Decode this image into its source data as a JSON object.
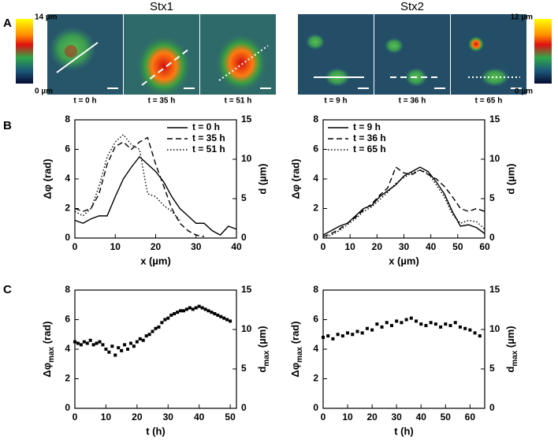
{
  "figure": {
    "panel_labels": [
      "A",
      "B",
      "C"
    ],
    "columns": [
      "Stx1",
      "Stx2"
    ],
    "colorbars": [
      {
        "top": "14 µm",
        "bottom": "0 µm"
      },
      {
        "top": "12 µm",
        "bottom": "0 µm"
      }
    ],
    "frames": [
      "t = 0 h",
      "t = 35 h",
      "t = 51 h",
      "t = 9 h",
      "t = 36 h",
      "t = 65 h"
    ]
  },
  "chart_data": [
    {
      "type": "line",
      "xlabel": "x (µm)",
      "ylabel": "Δφ (rad)",
      "y2label": "d (µm)",
      "xlim": [
        0,
        40
      ],
      "xticks": [
        0,
        10,
        20,
        30,
        40
      ],
      "ylim": [
        0,
        8
      ],
      "yticks": [
        0,
        2,
        4,
        6,
        8
      ],
      "y2lim": [
        0,
        15
      ],
      "y2ticks": [
        0,
        5,
        10,
        15
      ],
      "legend": "upper right",
      "x": [
        0,
        2,
        4,
        6,
        8,
        10,
        12,
        14,
        16,
        18,
        20,
        22,
        24,
        26,
        28,
        30,
        32,
        34,
        36,
        38,
        40
      ],
      "series": [
        {
          "name": "t = 0 h",
          "color": "#000000",
          "dash": "solid",
          "values": [
            1.2,
            1.0,
            1.3,
            1.5,
            1.5,
            2.8,
            4.0,
            4.8,
            5.5,
            5.0,
            4.5,
            3.8,
            2.8,
            2.0,
            1.5,
            1.0,
            1.0,
            0.5,
            0.2,
            0.8,
            0.6
          ]
        },
        {
          "name": "t = 35 h",
          "color": "#000000",
          "dash": "dashed",
          "values": [
            2.0,
            1.8,
            2.0,
            3.0,
            5.0,
            6.2,
            6.5,
            6.0,
            6.5,
            6.8,
            5.0,
            3.5,
            2.0,
            1.0,
            0.5,
            0.2,
            0.1,
            null,
            null,
            null,
            null
          ]
        },
        {
          "name": "t = 51 h",
          "color": "#000000",
          "dash": "dotted",
          "values": [
            1.8,
            1.5,
            2.0,
            3.5,
            5.5,
            6.5,
            7.0,
            6.3,
            6.0,
            3.0,
            2.8,
            2.2,
            1.8,
            1.2,
            null,
            null,
            null,
            null,
            null,
            null,
            null
          ]
        }
      ]
    },
    {
      "type": "line",
      "xlabel": "x (µm)",
      "ylabel": "Δφ (rad)",
      "y2label": "d (µm)",
      "xlim": [
        0,
        60
      ],
      "xticks": [
        0,
        10,
        20,
        30,
        40,
        50,
        60
      ],
      "ylim": [
        0,
        8
      ],
      "yticks": [
        0,
        2,
        4,
        6,
        8
      ],
      "y2lim": [
        0,
        15
      ],
      "y2ticks": [
        0,
        5,
        10,
        15
      ],
      "legend": "upper left",
      "x": [
        0,
        3,
        6,
        9,
        12,
        15,
        18,
        21,
        24,
        27,
        30,
        33,
        36,
        39,
        42,
        45,
        48,
        51,
        54,
        57,
        60
      ],
      "series": [
        {
          "name": "t = 9 h",
          "color": "#000000",
          "dash": "solid",
          "values": [
            0.2,
            0.5,
            0.8,
            1.0,
            1.5,
            2.0,
            2.2,
            2.8,
            3.2,
            3.6,
            4.2,
            4.5,
            4.8,
            4.5,
            3.8,
            3.0,
            1.8,
            0.8,
            0.9,
            0.7,
            0.3
          ]
        },
        {
          "name": "t = 36 h",
          "color": "#000000",
          "dash": "dashed",
          "values": [
            0.1,
            0.3,
            0.6,
            1.0,
            1.4,
            1.9,
            2.3,
            2.9,
            3.4,
            4.8,
            4.4,
            4.3,
            4.6,
            4.3,
            4.0,
            3.5,
            2.8,
            2.0,
            1.8,
            2.0,
            1.8
          ]
        },
        {
          "name": "t = 65 h",
          "color": "#000000",
          "dash": "dotted",
          "values": [
            0.0,
            0.2,
            0.5,
            0.9,
            1.3,
            1.8,
            2.1,
            2.6,
            3.1,
            3.7,
            4.1,
            4.4,
            4.6,
            4.4,
            3.6,
            2.8,
            1.6,
            1.0,
            1.2,
            1.1,
            0.6
          ]
        }
      ]
    },
    {
      "type": "scatter",
      "xlabel": "t (h)",
      "ylabel": {
        "text": "Δφ",
        "sub": "max",
        "unit": " (rad)"
      },
      "y2label": {
        "text": "d",
        "sub": "max",
        "unit": " (µm)"
      },
      "xlim": [
        0,
        52
      ],
      "xticks": [
        0,
        10,
        20,
        30,
        40,
        50
      ],
      "ylim": [
        0,
        8
      ],
      "yticks": [
        0,
        2,
        4,
        6,
        8
      ],
      "y2lim": [
        0,
        15
      ],
      "y2ticks": [
        0,
        5,
        10,
        15
      ],
      "x": [
        0,
        1,
        2,
        3,
        4,
        5,
        6,
        7,
        8,
        9,
        10,
        11,
        12,
        13,
        14,
        15,
        16,
        17,
        18,
        19,
        20,
        21,
        22,
        23,
        24,
        25,
        26,
        27,
        28,
        29,
        30,
        31,
        32,
        33,
        34,
        35,
        36,
        37,
        38,
        39,
        40,
        41,
        42,
        43,
        44,
        45,
        46,
        47,
        48,
        49,
        50
      ],
      "series": [
        {
          "color": "#000000",
          "values": [
            4.5,
            4.4,
            4.3,
            4.5,
            4.4,
            4.6,
            4.3,
            4.4,
            4.5,
            4.3,
            4.0,
            3.8,
            4.2,
            3.6,
            4.1,
            3.9,
            4.3,
            4.0,
            4.4,
            4.2,
            4.5,
            4.7,
            4.6,
            4.9,
            5.0,
            5.2,
            5.4,
            5.5,
            5.8,
            6.0,
            6.1,
            6.3,
            6.4,
            6.5,
            6.6,
            6.6,
            6.7,
            6.8,
            6.7,
            6.8,
            6.9,
            6.8,
            6.7,
            6.6,
            6.5,
            6.4,
            6.3,
            6.2,
            6.1,
            6.0,
            5.9
          ]
        }
      ]
    },
    {
      "type": "scatter",
      "xlabel": "t (h)",
      "ylabel": {
        "text": "Δφ",
        "sub": "max",
        "unit": " (rad)"
      },
      "y2label": {
        "text": "d",
        "sub": "max",
        "unit": " (µm)"
      },
      "xlim": [
        0,
        66
      ],
      "xticks": [
        0,
        10,
        20,
        30,
        40,
        50,
        60
      ],
      "ylim": [
        0,
        8
      ],
      "yticks": [
        0,
        2,
        4,
        6,
        8
      ],
      "y2lim": [
        0,
        15
      ],
      "y2ticks": [
        0,
        5,
        10,
        15
      ],
      "x": [
        0,
        2,
        4,
        6,
        8,
        10,
        12,
        14,
        16,
        18,
        20,
        22,
        24,
        26,
        28,
        30,
        32,
        34,
        36,
        38,
        40,
        42,
        44,
        46,
        48,
        50,
        52,
        54,
        56,
        58,
        60,
        62,
        64
      ],
      "series": [
        {
          "color": "#000000",
          "values": [
            4.8,
            4.9,
            4.7,
            5.0,
            4.9,
            5.1,
            5.0,
            5.2,
            5.1,
            5.4,
            5.3,
            5.7,
            5.5,
            5.8,
            5.6,
            5.9,
            5.8,
            6.0,
            6.1,
            5.9,
            5.7,
            5.6,
            5.8,
            5.7,
            5.5,
            5.7,
            5.6,
            5.8,
            5.5,
            5.4,
            5.3,
            5.1,
            4.9
          ]
        }
      ]
    }
  ]
}
